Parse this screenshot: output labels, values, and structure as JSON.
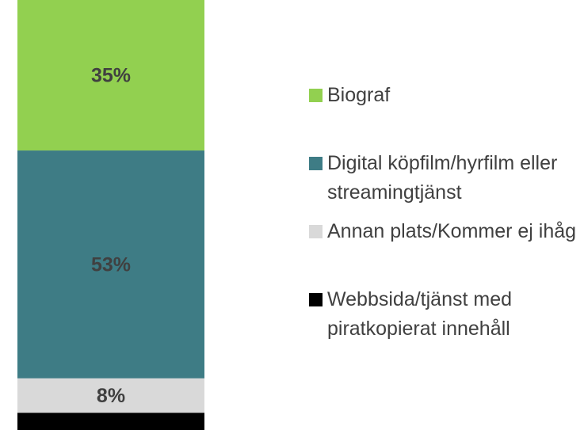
{
  "chart_data": {
    "type": "bar",
    "stacked": true,
    "ylim": [
      0,
      100
    ],
    "series": [
      {
        "name": "Biograf",
        "color": "#92d050",
        "values": [
          35
        ],
        "value_labels": [
          "35%"
        ]
      },
      {
        "name": "Digital köpfilm/hyrfilm eller streamingtjänst",
        "color": "#3e7c85",
        "values": [
          53
        ],
        "value_labels": [
          "53%"
        ]
      },
      {
        "name": "Annan plats/Kommer ej ihåg",
        "color": "#d9d9d9",
        "values": [
          8
        ],
        "value_labels": [
          "8%"
        ]
      },
      {
        "name": "Webbsida/tjänst med piratkopierat innehåll",
        "color": "#000000",
        "values": [
          4
        ]
      }
    ]
  }
}
